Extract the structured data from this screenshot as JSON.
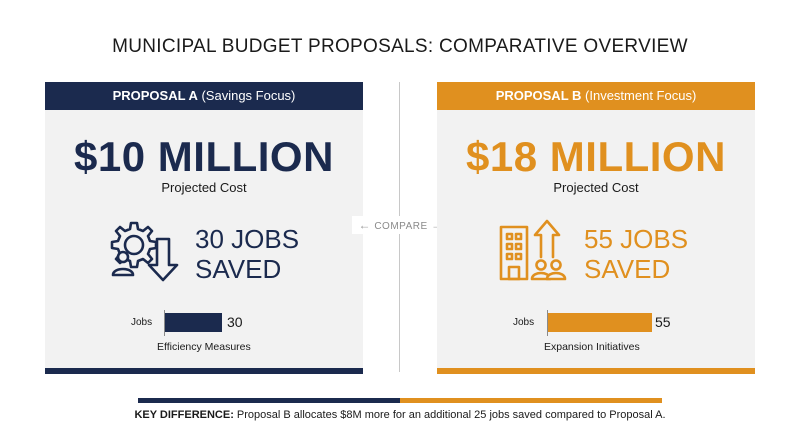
{
  "title": "MUNICIPAL BUDGET PROPOSALS: COMPARATIVE OVERVIEW",
  "compare_label": "COMPARE",
  "colors": {
    "navy": "#1b2a4e",
    "orange": "#e0901f",
    "card_bg": "#f2f2f2"
  },
  "proposal_a": {
    "name": "PROPOSAL A",
    "focus": "(Savings Focus)",
    "cost": "$10 MILLION",
    "cost_label": "Projected Cost",
    "jobs_line1": "30 JOBS",
    "jobs_line2": "SAVED",
    "icon": "gear-people-down-arrow-icon",
    "mini_label": "Jobs",
    "mini_value": "30",
    "jobs_value": 30,
    "mini_caption": "Efficiency Measures"
  },
  "proposal_b": {
    "name": "PROPOSAL B",
    "focus": "(Investment Focus)",
    "cost": "$18 MILLION",
    "cost_label": "Projected Cost",
    "jobs_line1": "55 JOBS",
    "jobs_line2": "SAVED",
    "icon": "building-people-up-arrow-icon",
    "mini_label": "Jobs",
    "mini_value": "55",
    "jobs_value": 55,
    "mini_caption": "Expansion Initiatives"
  },
  "footnote": {
    "label": "KEY DIFFERENCE:",
    "text": " Proposal B allocates $8M more for an additional 25 jobs saved compared to Proposal A."
  }
}
